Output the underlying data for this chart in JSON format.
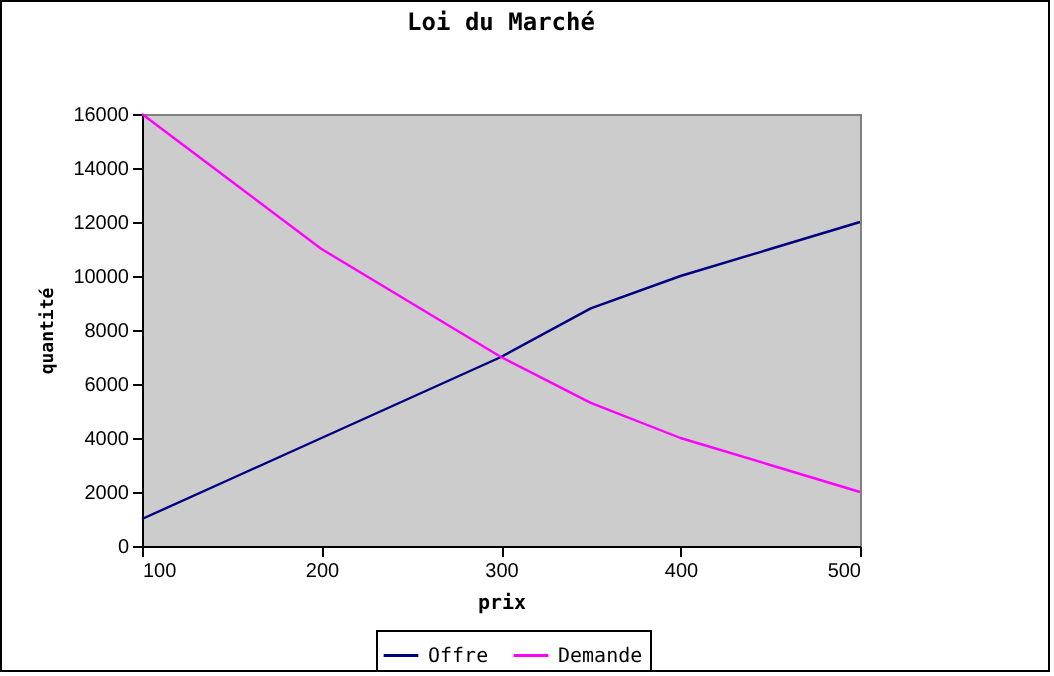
{
  "chart_data": {
    "type": "line",
    "title": "Loi du Marché",
    "xlabel": "prix",
    "ylabel": "quantité",
    "x": [
      100,
      150,
      200,
      250,
      300,
      350,
      400,
      450,
      500
    ],
    "series": [
      {
        "name": "Offre",
        "color": "#000080",
        "values": [
          1000,
          2500,
          4000,
          5500,
          7000,
          8800,
          10000,
          11000,
          12000
        ]
      },
      {
        "name": "Demande",
        "color": "#ff00ff",
        "values": [
          16000,
          13500,
          11000,
          9000,
          7000,
          5300,
          4000,
          3000,
          2000
        ]
      }
    ],
    "xlim": [
      100,
      500
    ],
    "xticks": [
      100,
      200,
      300,
      400,
      500
    ],
    "ylim": [
      0,
      16000
    ],
    "yticks": [
      0,
      2000,
      4000,
      6000,
      8000,
      10000,
      12000,
      14000,
      16000
    ],
    "grid": false,
    "legend": "bottom",
    "marker": "none",
    "line_style": "solid"
  }
}
